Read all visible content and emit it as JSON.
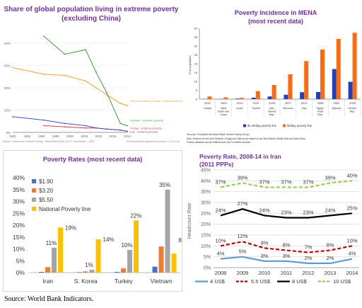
{
  "source_note": "Source: World Bank Indicators.",
  "chart_data": [
    {
      "type": "line",
      "title": "Share of global population living in extreme poverty",
      "subtitle": "(excluding China)",
      "x": [
        1981,
        1990,
        1996,
        2002,
        2005,
        2008,
        2012,
        2014
      ],
      "x_ticks": [
        "1981",
        "1985",
        "1990",
        "1995",
        "2000",
        "2005",
        "2010",
        "2016",
        "2014"
      ],
      "y_ticks": [
        "0%",
        "10%",
        "20%",
        "30%",
        "40%"
      ],
      "ylim": [
        0,
        45
      ],
      "series": [
        {
          "name": "World (excluding China) - extreme poverty",
          "color": "#f0a030",
          "values": [
            29,
            26,
            25.5,
            23,
            20,
            17,
            13,
            12
          ]
        },
        {
          "name": "Vietnam - extreme poverty",
          "color": "#3a9a3a",
          "values": [
            null,
            43,
            35,
            37,
            27,
            18,
            4,
            3
          ]
        },
        {
          "name": "Turkey - extreme poverty",
          "color": "#d04040",
          "values": [
            null,
            3,
            2.5,
            2,
            2,
            1.5,
            1,
            0.5
          ]
        },
        {
          "name": "Iran - extreme poverty",
          "color": "#4050c0",
          "values": [
            7,
            5.5,
            4,
            3,
            2,
            1.5,
            1,
            0.5
          ]
        }
      ],
      "source": "Source: China share of World Poverty - World Bank (WDI) (2017). World Bank — WDI",
      "credit": "OurWorldInData.org/extreme-poverty/ • CC BY-SA"
    },
    {
      "type": "bar",
      "title": "Poverty Incidence in MENA",
      "subtitle": "(most recent data)",
      "ylabel": "% of population",
      "ylim": [
        0,
        40
      ],
      "y_ticks": [
        "0",
        "5",
        "10",
        "15",
        "20",
        "25",
        "30",
        "35",
        "40"
      ],
      "categories": [
        {
          "year": "2010",
          "name": "Jordan"
        },
        {
          "year": "2009",
          "name": "West Bank and Gaza"
        },
        {
          "year": "2010",
          "name": "Israel"
        },
        {
          "year": "2010",
          "name": "Tunisia"
        },
        {
          "year": "2005",
          "name": "Iran, Islamic Rep."
        },
        {
          "year": "2007",
          "name": "Morocco"
        },
        {
          "year": "2012",
          "name": "Iraq"
        },
        {
          "year": "2008",
          "name": "Egypt, Arab Rep."
        },
        {
          "year": "2002",
          "name": "Djibouti"
        },
        {
          "year": "2005",
          "name": "Yemen, Rep."
        }
      ],
      "series": [
        {
          "name": "$1.25/day poverty line",
          "color": "#1f3fbf",
          "values": [
            0.1,
            0.1,
            0.3,
            0.8,
            1.5,
            2.5,
            3.9,
            4.0,
            17,
            9.8
          ]
        },
        {
          "name": "$2/day poverty line",
          "color": "#ff6a10",
          "values": [
            1.5,
            1,
            0.7,
            4.5,
            8,
            14,
            21.5,
            28,
            34,
            37.5
          ]
        }
      ],
      "source": "Sources: PovcalNet and World Bank Global Poverty Group.",
      "note": "Note: Numbers for the Arab Republic of Egypt and Djibouti are based on the World Bank's Middle East and North Africa Poverty database and are different from the PovcalNet numbers."
    },
    {
      "type": "bar",
      "title": "Poverty Rates (most recent data)",
      "ylim": [
        0,
        40
      ],
      "y_ticks": [
        "0%",
        "5%",
        "10%",
        "15%",
        "20%",
        "25%",
        "30%",
        "35%",
        "40%"
      ],
      "categories": [
        "Iran",
        "S. Korea",
        "Turkey",
        "Vietnam"
      ],
      "series": [
        {
          "name": "$1.90",
          "color": "#4472c4",
          "values": [
            0.3,
            0.2,
            0.3,
            2.5
          ]
        },
        {
          "name": "$3.20",
          "color": "#ed7d31",
          "values": [
            2.3,
            0.5,
            1.8,
            11
          ]
        },
        {
          "name": "$5.50",
          "color": "#a5a5a5",
          "values": [
            10.5,
            1.2,
            9.6,
            35
          ]
        },
        {
          "name": "National Poverty line",
          "color": "#ffc000",
          "values": [
            19,
            14,
            22,
            8
          ]
        }
      ],
      "data_labels": [
        {
          "category": "Iran",
          "series": "$5.50",
          "text": "11%"
        },
        {
          "category": "Iran",
          "series": "National Poverty line",
          "text": "19%"
        },
        {
          "category": "S. Korea",
          "series": "$5.50",
          "text": "1%"
        },
        {
          "category": "S. Korea",
          "series": "National Poverty line",
          "text": "14%"
        },
        {
          "category": "Turkey",
          "series": "$5.50",
          "text": "10%"
        },
        {
          "category": "Turkey",
          "series": "National Poverty line",
          "text": "22%"
        },
        {
          "category": "Vietnam",
          "series": "$5.50",
          "text": "35%"
        },
        {
          "category": "Vietnam",
          "series": "National Poverty line",
          "text": "8%"
        }
      ]
    },
    {
      "type": "line",
      "title": "Poverty Rate, 2008-14 in Iran",
      "subtitle": "(2011 PPPs)",
      "ylabel": "Headcount Rate",
      "ylim": [
        0,
        45
      ],
      "y_ticks": [
        "0%",
        "5%",
        "10%",
        "15%",
        "20%",
        "25%",
        "30%",
        "35%",
        "40%",
        "45%"
      ],
      "categories": [
        "2008",
        "2009",
        "2010",
        "2011",
        "2012",
        "2013",
        "2014"
      ],
      "series": [
        {
          "name": "4 US$",
          "color": "#5b9bd5",
          "dash": "solid",
          "values": [
            4,
            5,
            3,
            3,
            2,
            2,
            4
          ],
          "labels": [
            "4%",
            "5%",
            "3%",
            "3%",
            "2%",
            "2%",
            "4%"
          ]
        },
        {
          "name": "5.5 US$",
          "color": "#c00000",
          "dash": "dashed",
          "values": [
            10,
            12,
            9,
            8,
            7,
            8,
            10
          ],
          "labels": [
            "10%",
            "12%",
            "9%",
            "8%",
            "7%",
            "8%",
            "10%"
          ]
        },
        {
          "name": "8 US$",
          "color": "#000000",
          "dash": "solid",
          "values": [
            24,
            27,
            24,
            23,
            23,
            24,
            25
          ],
          "labels": [
            "24%",
            "27%",
            "24%",
            "23%",
            "23%",
            "24%",
            "25%"
          ]
        },
        {
          "name": "10 US$",
          "color": "#92d050",
          "dash": "dashed",
          "values": [
            37,
            39,
            37,
            37,
            37,
            39,
            40
          ],
          "labels": [
            "37%",
            "39%",
            "37%",
            "37%",
            "37%",
            "39%",
            "40%"
          ]
        }
      ]
    }
  ]
}
